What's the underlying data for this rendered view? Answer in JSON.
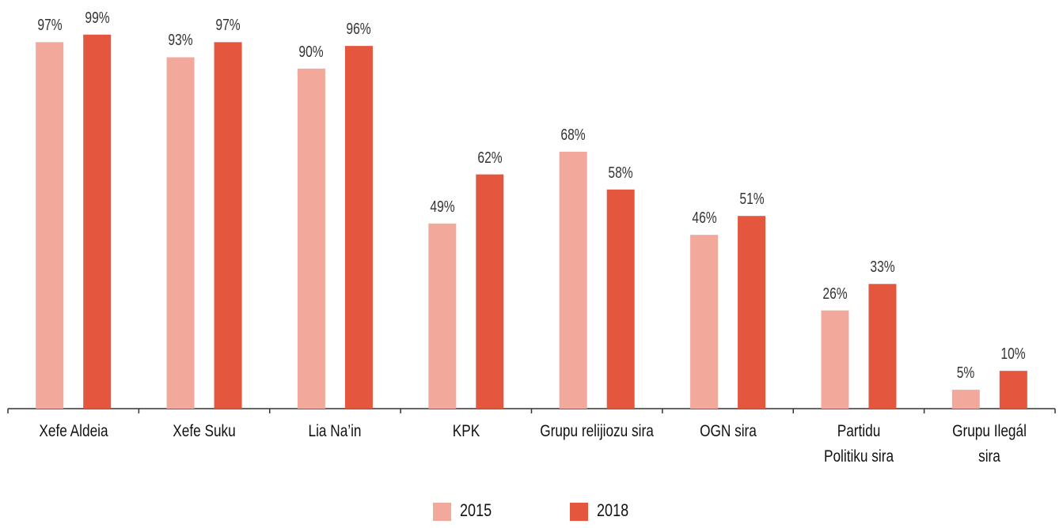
{
  "chart_data": {
    "type": "bar",
    "categories": [
      "Xefe Aldeia",
      "Xefe Suku",
      "Lia Na’in",
      "KPK",
      "Grupu relijiozu sira",
      "OGN sira",
      "Partidu\nPolitiku sira",
      "Grupu Ilegál\nsira"
    ],
    "series": [
      {
        "name": "2015",
        "color": "#f2a99b",
        "values": [
          97,
          93,
          90,
          49,
          68,
          46,
          26,
          5
        ],
        "value_labels": [
          "97%",
          "93%",
          "90%",
          "49%",
          "68%",
          "46%",
          "26%",
          "5%"
        ]
      },
      {
        "name": "2018",
        "color": "#e5563e",
        "values": [
          99,
          97,
          96,
          62,
          58,
          51,
          33,
          10
        ],
        "value_labels": [
          "99%",
          "97%",
          "96%",
          "62%",
          "58%",
          "51%",
          "33%",
          "10%"
        ]
      }
    ],
    "ylim": [
      0,
      100
    ]
  }
}
